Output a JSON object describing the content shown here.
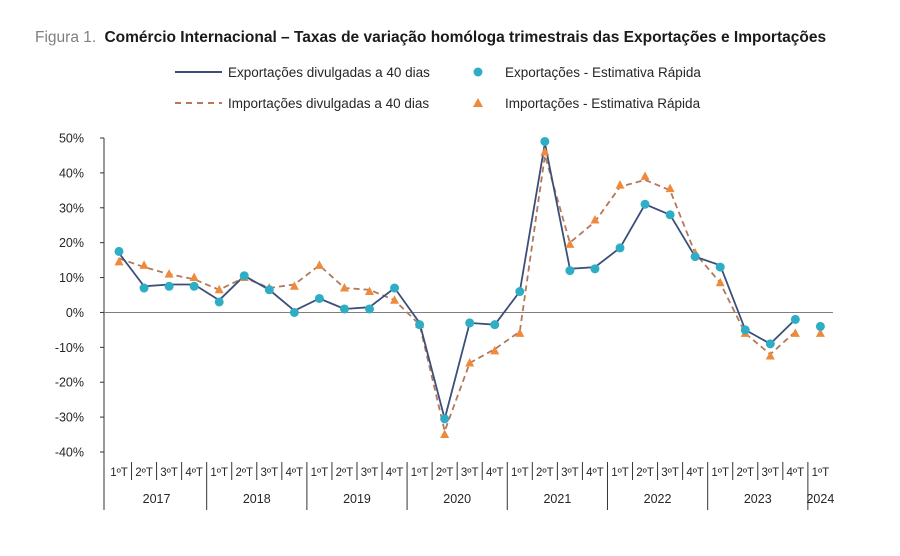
{
  "figure": {
    "label": "Figura 1.",
    "title": "Comércio Internacional – Taxas de variação homóloga trimestrais das Exportações e Importações"
  },
  "legend": {
    "export_line": "Exportações divulgadas  a 40 dias",
    "export_dots": "Exportações - Estimativa Rápida",
    "import_line": "Importações divulgadas a 40 dias",
    "import_dots": "Importações - Estimativa Rápida"
  },
  "colors": {
    "export_line": "#3b4f7a",
    "export_dots": "#2eaec4",
    "import_line": "#b4795a",
    "import_dots": "#ee8a3c",
    "label_gray": "#808080",
    "axis": "#333333"
  },
  "chart_data": {
    "type": "line",
    "quarters": [
      "1ºT",
      "2ºT",
      "3ºT",
      "4ºT",
      "1ºT",
      "2ºT",
      "3ºT",
      "4ºT",
      "1ºT",
      "2ºT",
      "3ºT",
      "4ºT",
      "1ºT",
      "2ºT",
      "3ºT",
      "4ºT",
      "1ºT",
      "2ºT",
      "3ºT",
      "4ºT",
      "1ºT",
      "2ºT",
      "3ºT",
      "4ºT",
      "1ºT",
      "2ºT",
      "3ºT",
      "4ºT",
      "1ºT"
    ],
    "years": [
      {
        "label": "2017",
        "quarters": 4
      },
      {
        "label": "2018",
        "quarters": 4
      },
      {
        "label": "2019",
        "quarters": 4
      },
      {
        "label": "2020",
        "quarters": 4
      },
      {
        "label": "2021",
        "quarters": 4
      },
      {
        "label": "2022",
        "quarters": 4
      },
      {
        "label": "2023",
        "quarters": 4
      },
      {
        "label": "2024",
        "quarters": 1
      }
    ],
    "ylim": [
      -40,
      50
    ],
    "yticks": [
      -40,
      -30,
      -20,
      -10,
      0,
      10,
      20,
      30,
      40,
      50
    ],
    "ytick_labels": [
      "-40%",
      "-30%",
      "-20%",
      "-10%",
      "0%",
      "10%",
      "20%",
      "30%",
      "40%",
      "50%"
    ],
    "series": [
      {
        "name": "Exportações divulgadas  a 40 dias",
        "kind": "line-solid",
        "values": [
          17,
          7.5,
          8,
          8,
          3.5,
          10.5,
          6.5,
          0.5,
          4,
          1,
          1.5,
          7,
          -3,
          -30.5,
          -3,
          -3.5,
          6,
          48.5,
          12.5,
          13,
          18.5,
          31,
          28,
          16,
          13.5,
          -5,
          -9,
          -2,
          null
        ]
      },
      {
        "name": "Exportações - Estimativa Rápida",
        "kind": "dots",
        "values": [
          17.5,
          7,
          7.5,
          7.5,
          3,
          10.5,
          6.5,
          0,
          4,
          1,
          1,
          7,
          -3.5,
          -30.5,
          -3,
          -3.5,
          6,
          49,
          12,
          12.5,
          18.5,
          31,
          28,
          16,
          13,
          -5,
          -9,
          -2,
          -4
        ]
      },
      {
        "name": "Importações divulgadas a 40 dias",
        "kind": "line-dashed",
        "values": [
          15.5,
          13,
          11,
          9.5,
          6.5,
          10,
          7,
          8,
          13.5,
          7,
          6.5,
          3.5,
          -3.5,
          -34,
          -14.5,
          -10.5,
          -5.5,
          45,
          20,
          26,
          36,
          38,
          35,
          17,
          8.5,
          -6,
          -12,
          -5.5,
          null
        ]
      },
      {
        "name": "Importações - Estimativa Rápida",
        "kind": "triangles",
        "values": [
          14.5,
          13.5,
          11,
          10,
          6.5,
          10,
          7,
          7.5,
          13.5,
          7,
          6,
          3.5,
          -3.5,
          -35,
          -14.5,
          -11,
          -6,
          46,
          19.5,
          26.5,
          36.5,
          39,
          35.5,
          17,
          8.5,
          -6,
          -12.5,
          -6,
          -6
        ]
      }
    ]
  }
}
